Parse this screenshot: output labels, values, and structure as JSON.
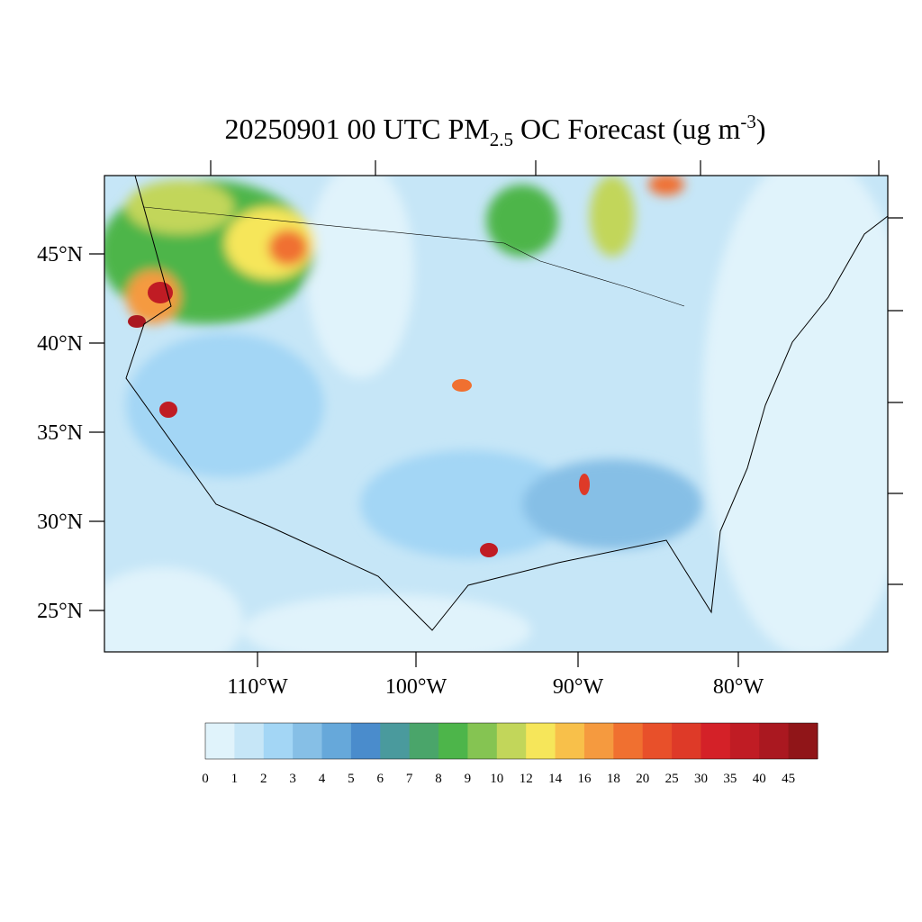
{
  "title": {
    "main": "20250901 00 UTC PM",
    "sub": "2.5",
    "rest": " OC Forecast (ug m",
    "sup": "-3",
    "end": ")"
  },
  "axes": {
    "lat_labels": [
      "45°N",
      "40°N",
      "35°N",
      "30°N",
      "25°N"
    ],
    "lon_labels": [
      "110°W",
      "100°W",
      "90°W",
      "80°W"
    ]
  },
  "colorbar": {
    "levels": [
      0,
      1,
      2,
      3,
      4,
      5,
      6,
      7,
      8,
      9,
      10,
      12,
      14,
      16,
      18,
      20,
      25,
      30,
      35,
      40,
      45
    ],
    "colors": [
      "#e0f3fb",
      "#c6e6f7",
      "#a3d6f5",
      "#86bfe6",
      "#66a8da",
      "#4a8ccc",
      "#4a9a9d",
      "#4aa56a",
      "#4db54a",
      "#85c452",
      "#c2d65a",
      "#f6e65a",
      "#f8c04a",
      "#f59a3f",
      "#f07030",
      "#e8502a",
      "#de3a28",
      "#d42128",
      "#c01c24",
      "#aa1820",
      "#901518"
    ]
  }
}
